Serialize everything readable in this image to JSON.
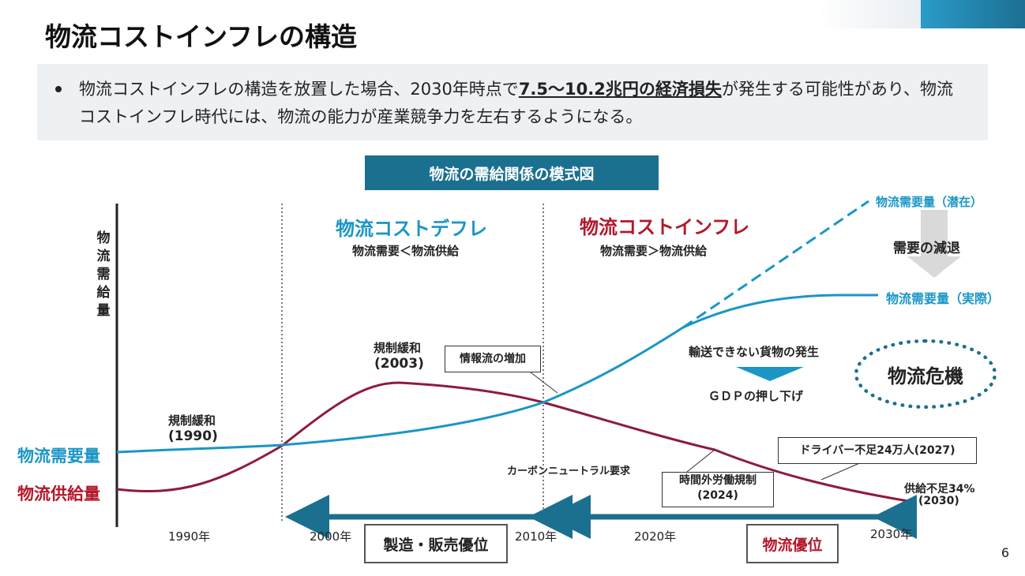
{
  "slide": {
    "title": "物流コストインフレの構造",
    "summary_pre": "物流コストインフレの構造を放置した場合、2030年時点で",
    "summary_em": "7.5〜10.2兆円の経済損失",
    "summary_post": "が発生する可能性があり、物流コストインフレ時代には、物流の能力が産業競争力を左右するようになる。",
    "page_number": "6"
  },
  "diagram": {
    "title": "物流の需給関係の模式図",
    "y_axis_label": "物流需給量",
    "phases": {
      "deflation": {
        "title": "物流コストデフレ",
        "subtitle": "物流需要＜物流供給",
        "color": "#1a96c7"
      },
      "inflation": {
        "title": "物流コストインフレ",
        "subtitle": "物流需要＞物流供給",
        "color": "#b3182b"
      }
    },
    "series": {
      "demand": {
        "name": "物流需要量",
        "color": "#1a96c7"
      },
      "supply": {
        "name": "物流供給量",
        "color": "#8e1c3c"
      },
      "demand_potential": "物流需要量（潜在）",
      "demand_actual": "物流需要量（実際）"
    },
    "x_ticks": [
      "1990年",
      "2000年",
      "2010年",
      "2020年",
      "2030年"
    ],
    "annotations": {
      "dereg_1990": {
        "line1": "規制緩和",
        "line2": "(1990)"
      },
      "dereg_2003": {
        "line1": "規制緩和",
        "line2": "(2003)"
      },
      "info_flow": "情報流の増加",
      "carbon": "カーボンニュートラル要求",
      "overtime": {
        "line1": "時間外労働規制",
        "line2": "(2024)"
      },
      "driver_shortage": "ドライバー不足24万人(2027)",
      "supply_shortage": {
        "line1": "供給不足34%",
        "line2": "(2030)"
      },
      "demand_decline": "需要の減退",
      "undeliverable": "輸送できない貨物の発生",
      "gdp": "ＧＤＰの押し下げ",
      "crisis": "物流危機"
    },
    "eras": {
      "manufacturing": "製造・販売優位",
      "logistics": "物流優位"
    },
    "colors": {
      "accent": "#1b6f8f",
      "arrow_gray": "#d9d9d9"
    }
  }
}
